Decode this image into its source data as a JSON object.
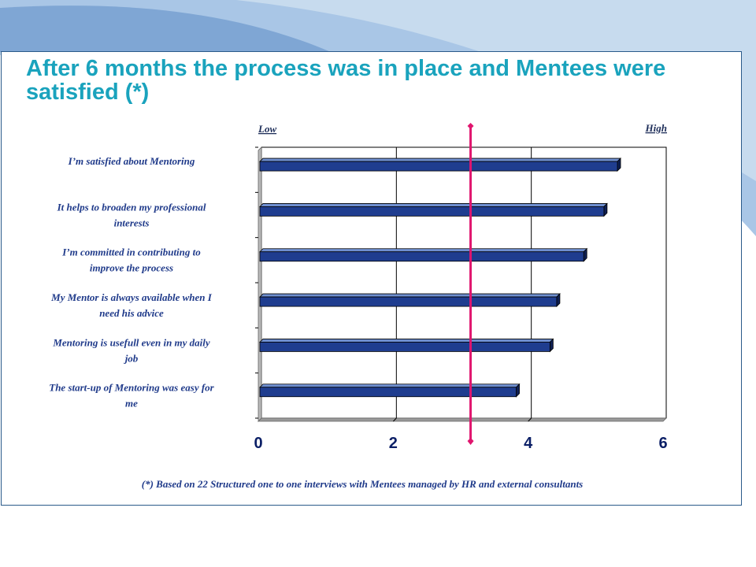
{
  "slide": {
    "title": "After 6 months the process was in place and Mentees were satisfied (*)",
    "footnote": "(*) Based on 22 Structured one to one interviews with Mentees managed by HR and external consultants"
  },
  "colors": {
    "bar_front": "#1f3d8f",
    "bar_top": "#6f8fd0",
    "bar_side": "#0e1f52",
    "marker": "#e0156e",
    "title": "#1aa3bd",
    "swoosh_light": "#c7dbee",
    "swoosh_dark": "#7fa6d4"
  },
  "chart_data": {
    "type": "bar",
    "orientation": "horizontal",
    "categories": [
      [
        "I’m satisfied about Mentoring"
      ],
      [
        "It  helps to broaden my professional",
        "interests"
      ],
      [
        "I’m committed in contributing to",
        "improve the process"
      ],
      [
        "My Mentor is always available when I",
        "need his advice"
      ],
      [
        "Mentoring is usefull even in my daily",
        "job"
      ],
      [
        "The start-up of Mentoring was easy for",
        "me"
      ]
    ],
    "values": [
      5.3,
      5.1,
      4.8,
      4.4,
      4.3,
      3.8
    ],
    "xlim": [
      0,
      6
    ],
    "xticks": [
      "0",
      "2",
      "4",
      "6"
    ],
    "grid": true,
    "scale_low_label": "Low",
    "scale_high_label": "High",
    "reference_line_value": 3.1
  }
}
